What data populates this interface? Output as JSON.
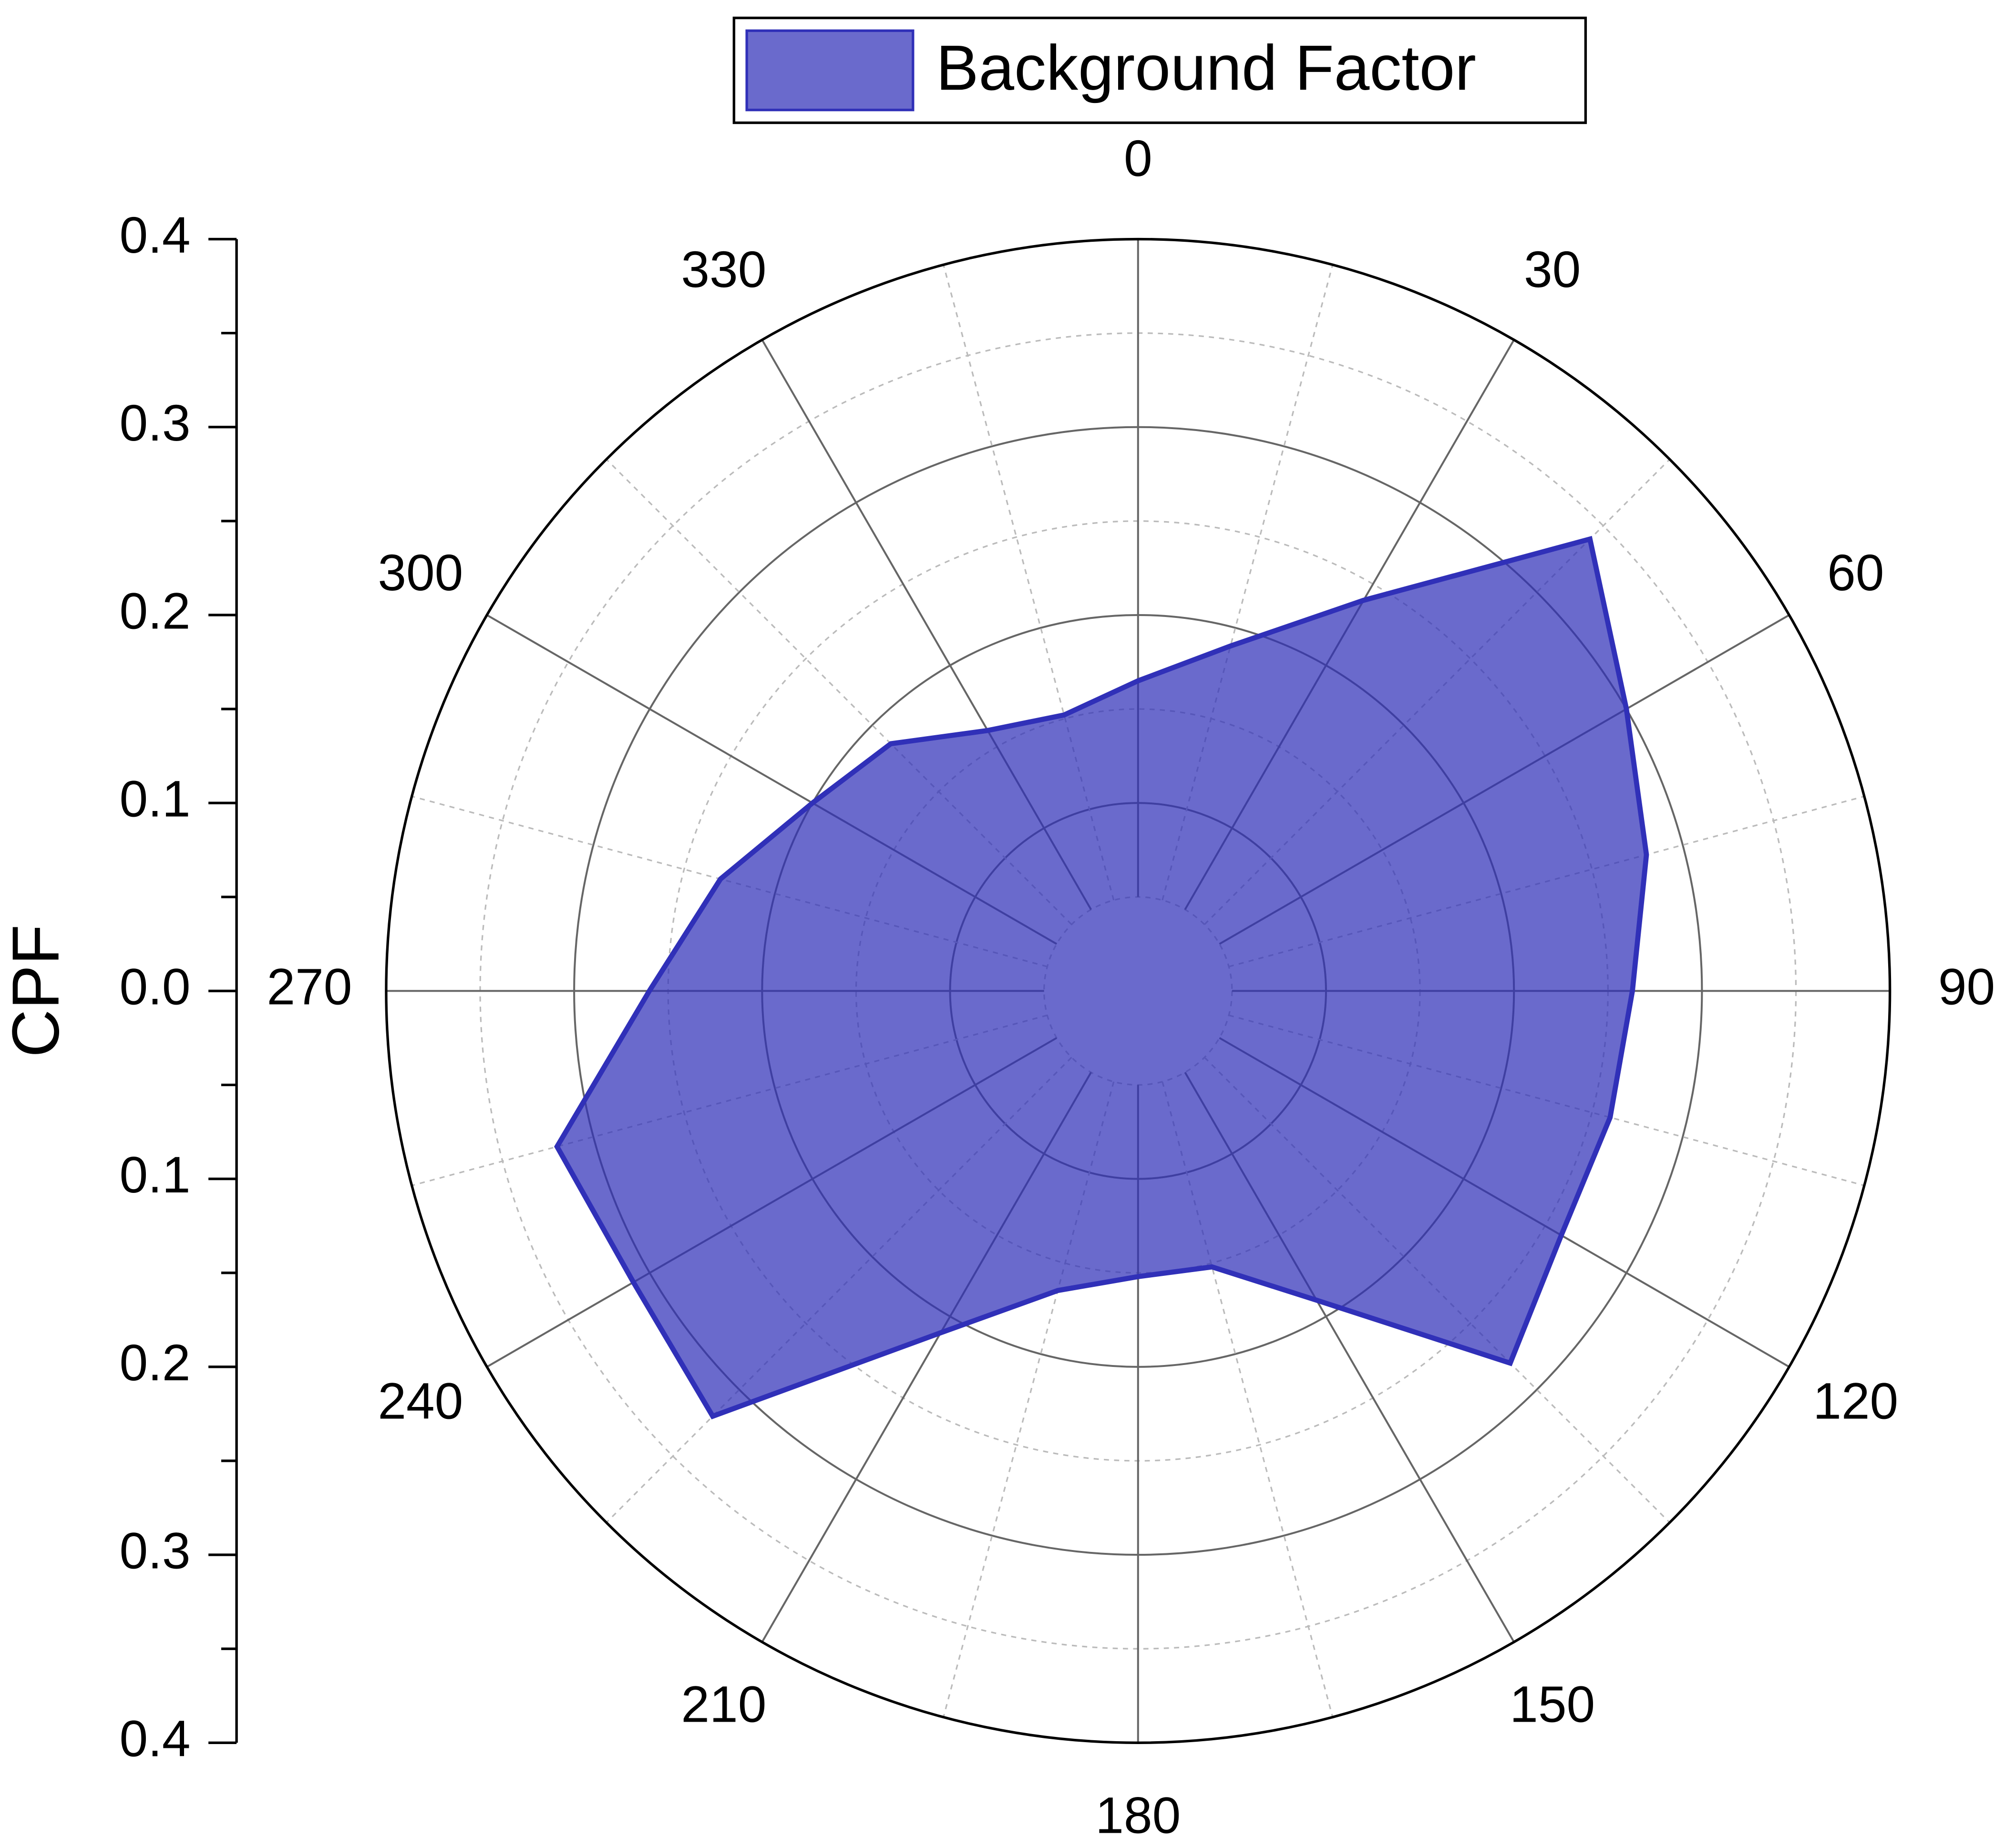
{
  "chart_data": {
    "type": "polar-area",
    "y_axis_label": "CPF",
    "theta": [
      0,
      15,
      30,
      45,
      60,
      75,
      90,
      105,
      120,
      135,
      150,
      165,
      180,
      195,
      210,
      225,
      240,
      255,
      270,
      285,
      300,
      315,
      330,
      345
    ],
    "series": [
      {
        "name": "Background Factor",
        "color": "#3030b8",
        "values": [
          0.165,
          0.19,
          0.24,
          0.34,
          0.3,
          0.28,
          0.263,
          0.26,
          0.26,
          0.28,
          0.19,
          0.152,
          0.152,
          0.165,
          0.21,
          0.32,
          0.31,
          0.32,
          0.26,
          0.23,
          0.2,
          0.186,
          0.16,
          0.152
        ]
      }
    ],
    "rlim": [
      0,
      0.4
    ],
    "rticks": [
      {
        "value": 0,
        "label": "0.0"
      },
      0.1,
      0.2,
      0.3,
      0.4
    ],
    "rminorticks": [
      0.05,
      0.15,
      0.25,
      0.35
    ],
    "thetaticks": [
      0,
      30,
      60,
      90,
      120,
      150,
      180,
      210,
      240,
      270,
      300,
      330
    ],
    "thetaminorticks": [
      15,
      45,
      75,
      105,
      135,
      165,
      195,
      225,
      255,
      285,
      315,
      345
    ],
    "grid": true,
    "legend": "top"
  }
}
